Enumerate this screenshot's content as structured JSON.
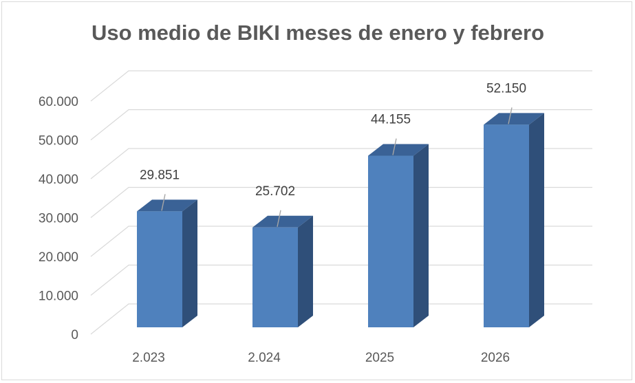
{
  "chart_data": {
    "type": "bar",
    "title": "Uso medio de BIKI meses de enero y febrero",
    "categories": [
      "2.023",
      "2.024",
      "2025",
      "2026"
    ],
    "values": [
      29851,
      25702,
      44155,
      52150
    ],
    "data_labels": [
      "29.851",
      "25.702",
      "44.155",
      "52.150"
    ],
    "y_ticks": [
      0,
      10000,
      20000,
      30000,
      40000,
      50000,
      60000
    ],
    "y_tick_labels": [
      "0",
      "10.000",
      "20.000",
      "30.000",
      "40.000",
      "50.000",
      "60.000"
    ],
    "ylim": [
      0,
      60000
    ],
    "xlabel": "",
    "ylabel": "",
    "grid": true,
    "style": "3d-column",
    "colors": {
      "front": "#4f81bd",
      "side": "#2f4f79",
      "top": "#3a6296",
      "grid": "#d9d9d9",
      "text": "#595959"
    }
  }
}
